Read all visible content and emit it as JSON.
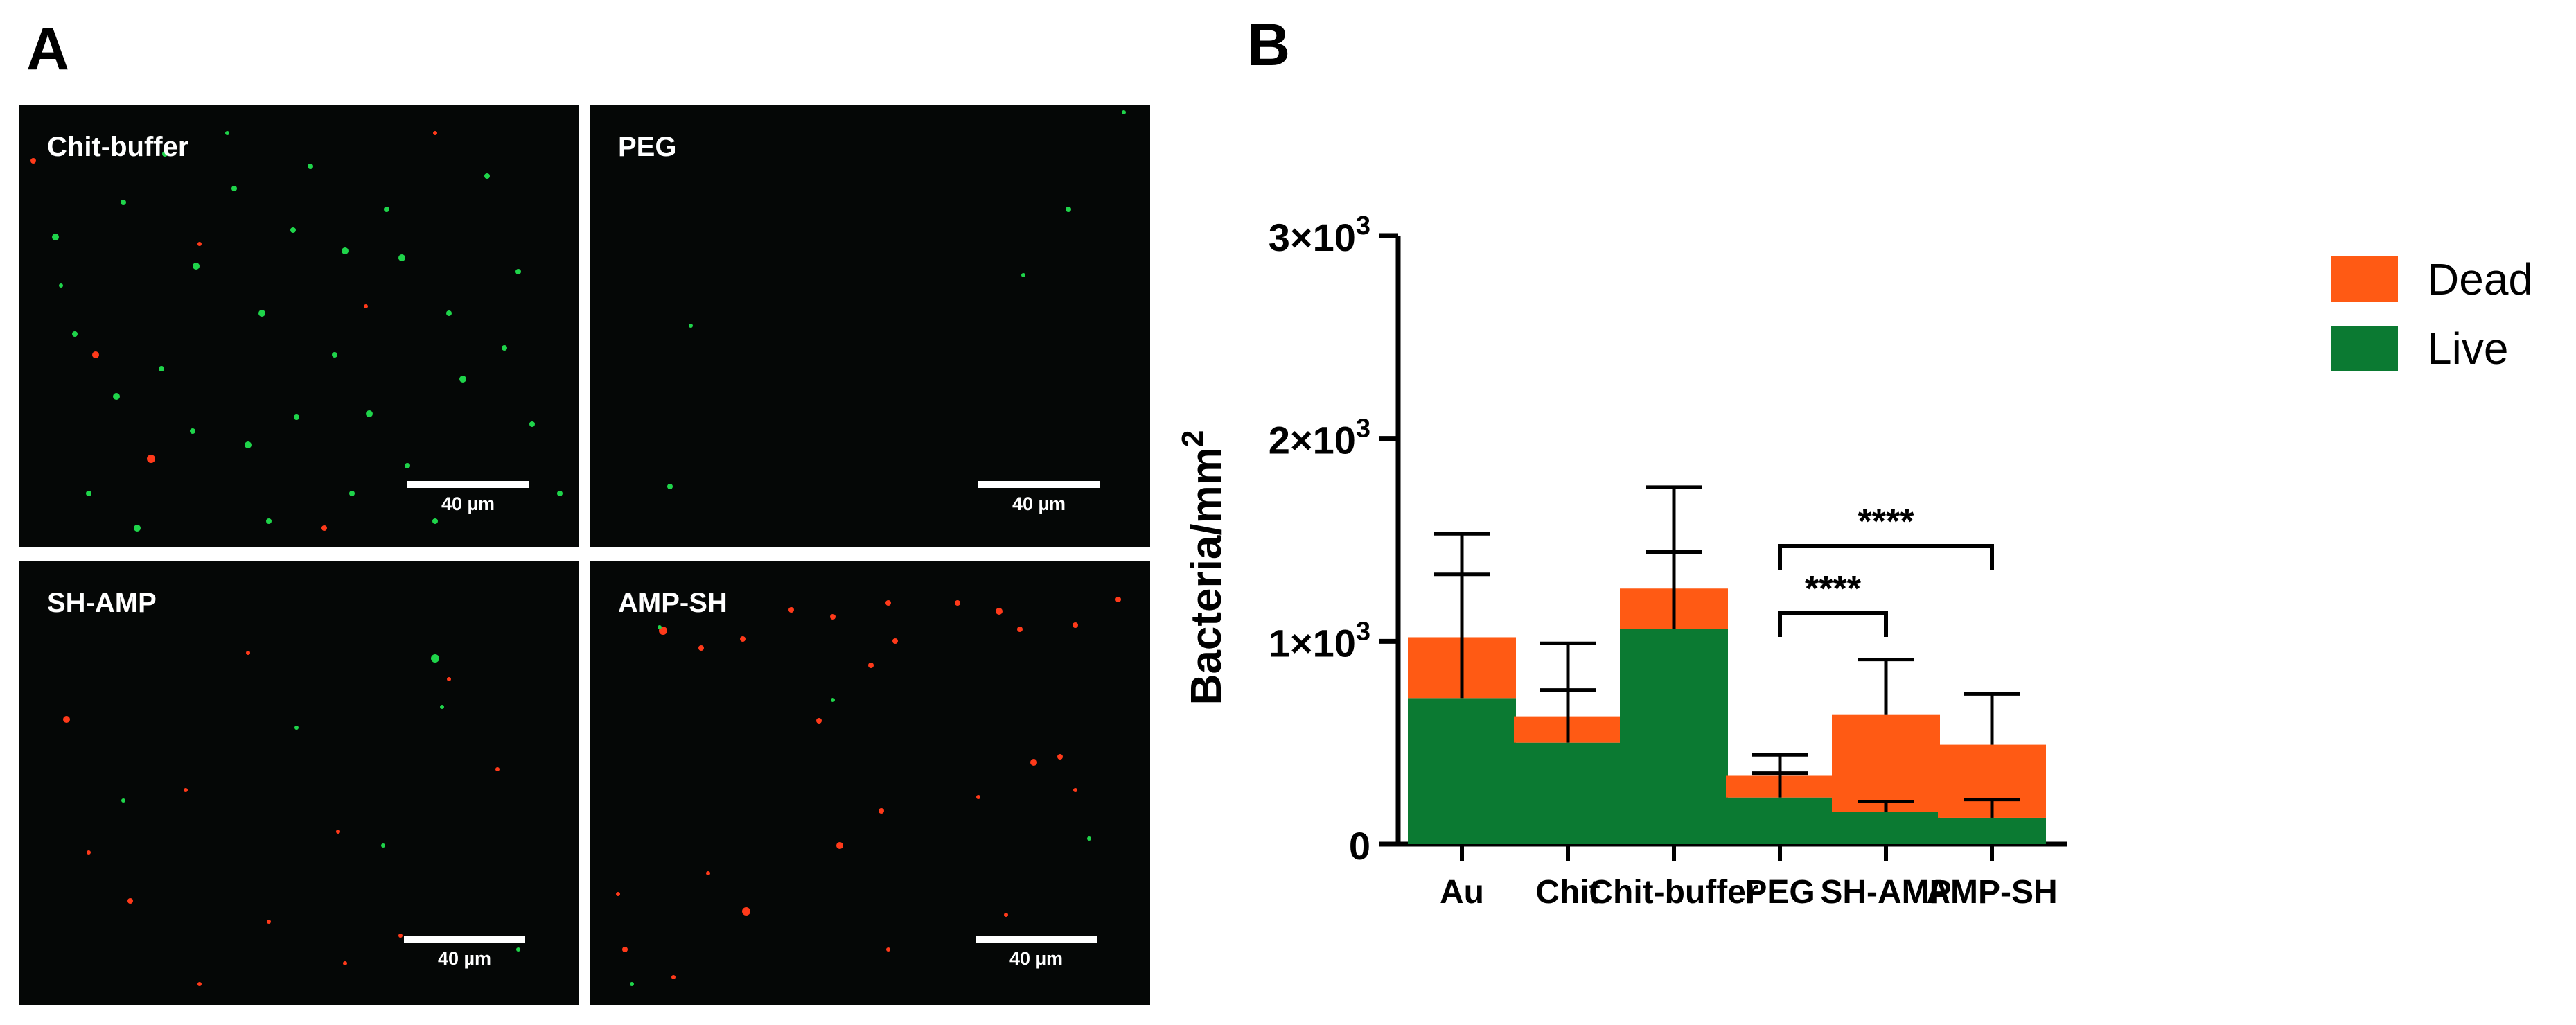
{
  "panels": {
    "a_letter": "A",
    "b_letter": "B"
  },
  "micrographs": [
    {
      "label": "Chit-buffer",
      "scale": "40 µm"
    },
    {
      "label": "PEG",
      "scale": "40 µm"
    },
    {
      "label": "SH-AMP",
      "scale": "40 µm"
    },
    {
      "label": "AMP-SH",
      "scale": "40 µm"
    }
  ],
  "colors": {
    "dead": "#ff5a14",
    "live": "#0b7a32",
    "micro_bg": "#050706",
    "cell_green": "#1fd44a",
    "cell_red": "#ff3a1a"
  },
  "chart_data": {
    "type": "bar",
    "stacked": true,
    "categories": [
      "Au",
      "Chit",
      "Chit-buffer",
      "PEG",
      "SH-AMP",
      "AMP-SH"
    ],
    "series": [
      {
        "name": "Live",
        "color": "#0b7a32",
        "values": [
          720,
          500,
          1060,
          230,
          160,
          130
        ],
        "error": [
          610,
          260,
          380,
          120,
          50,
          90
        ]
      },
      {
        "name": "Dead",
        "color": "#ff5a14",
        "values": [
          300,
          130,
          200,
          110,
          480,
          360
        ],
        "error": [
          510,
          360,
          500,
          100,
          270,
          250
        ]
      }
    ],
    "ylabel": "Bacteria/mm",
    "ylabel_sup": "2",
    "ylim": [
      0,
      3000
    ],
    "yticks": [
      {
        "value": 0,
        "base": "0",
        "exp": ""
      },
      {
        "value": 1000,
        "base": "1×10",
        "exp": "3"
      },
      {
        "value": 2000,
        "base": "2×10",
        "exp": "3"
      },
      {
        "value": 3000,
        "base": "3×10",
        "exp": "3"
      }
    ],
    "legend": {
      "position": "top-right",
      "entries": [
        "Dead",
        "Live"
      ]
    },
    "significance": [
      {
        "from": "PEG",
        "to": "SH-AMP",
        "label": "****"
      },
      {
        "from": "PEG",
        "to": "AMP-SH",
        "label": "****"
      }
    ]
  }
}
